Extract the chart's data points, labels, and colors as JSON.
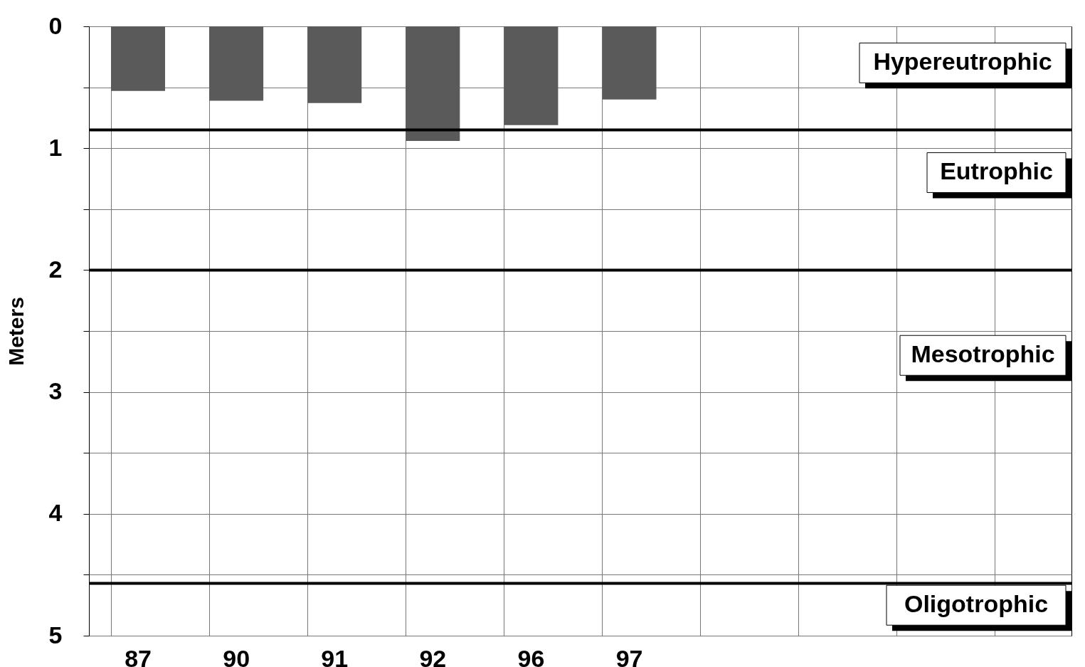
{
  "chart_data": {
    "type": "bar",
    "ylabel": "Meters",
    "categories": [
      "87",
      "90",
      "91",
      "92",
      "96",
      "97",
      null,
      null,
      null,
      null
    ],
    "values": [
      0.53,
      0.61,
      0.63,
      0.94,
      0.81,
      0.6,
      null,
      null,
      null,
      null
    ],
    "color": "#5a5a5a",
    "ylim": [
      5,
      0
    ],
    "yticks": [
      0,
      {
        "value": 0.5,
        "label": null
      },
      1,
      {
        "value": 1.5,
        "label": null
      },
      2,
      {
        "value": 2.5,
        "label": null
      },
      3,
      {
        "value": 3.5,
        "label": null
      },
      4,
      {
        "value": 4.5,
        "label": null
      },
      5
    ],
    "grid": true,
    "ref_lines": [
      {
        "axis": "y",
        "value": 0.85,
        "color": "#000000"
      },
      {
        "axis": "y",
        "value": 2,
        "color": "#000000"
      },
      {
        "axis": "y",
        "value": 4.57,
        "color": "#000000"
      }
    ],
    "annotations": [
      "Hypereutrophic",
      "Eutrophic",
      "Mesotrophic",
      "Oligotrophic"
    ]
  }
}
